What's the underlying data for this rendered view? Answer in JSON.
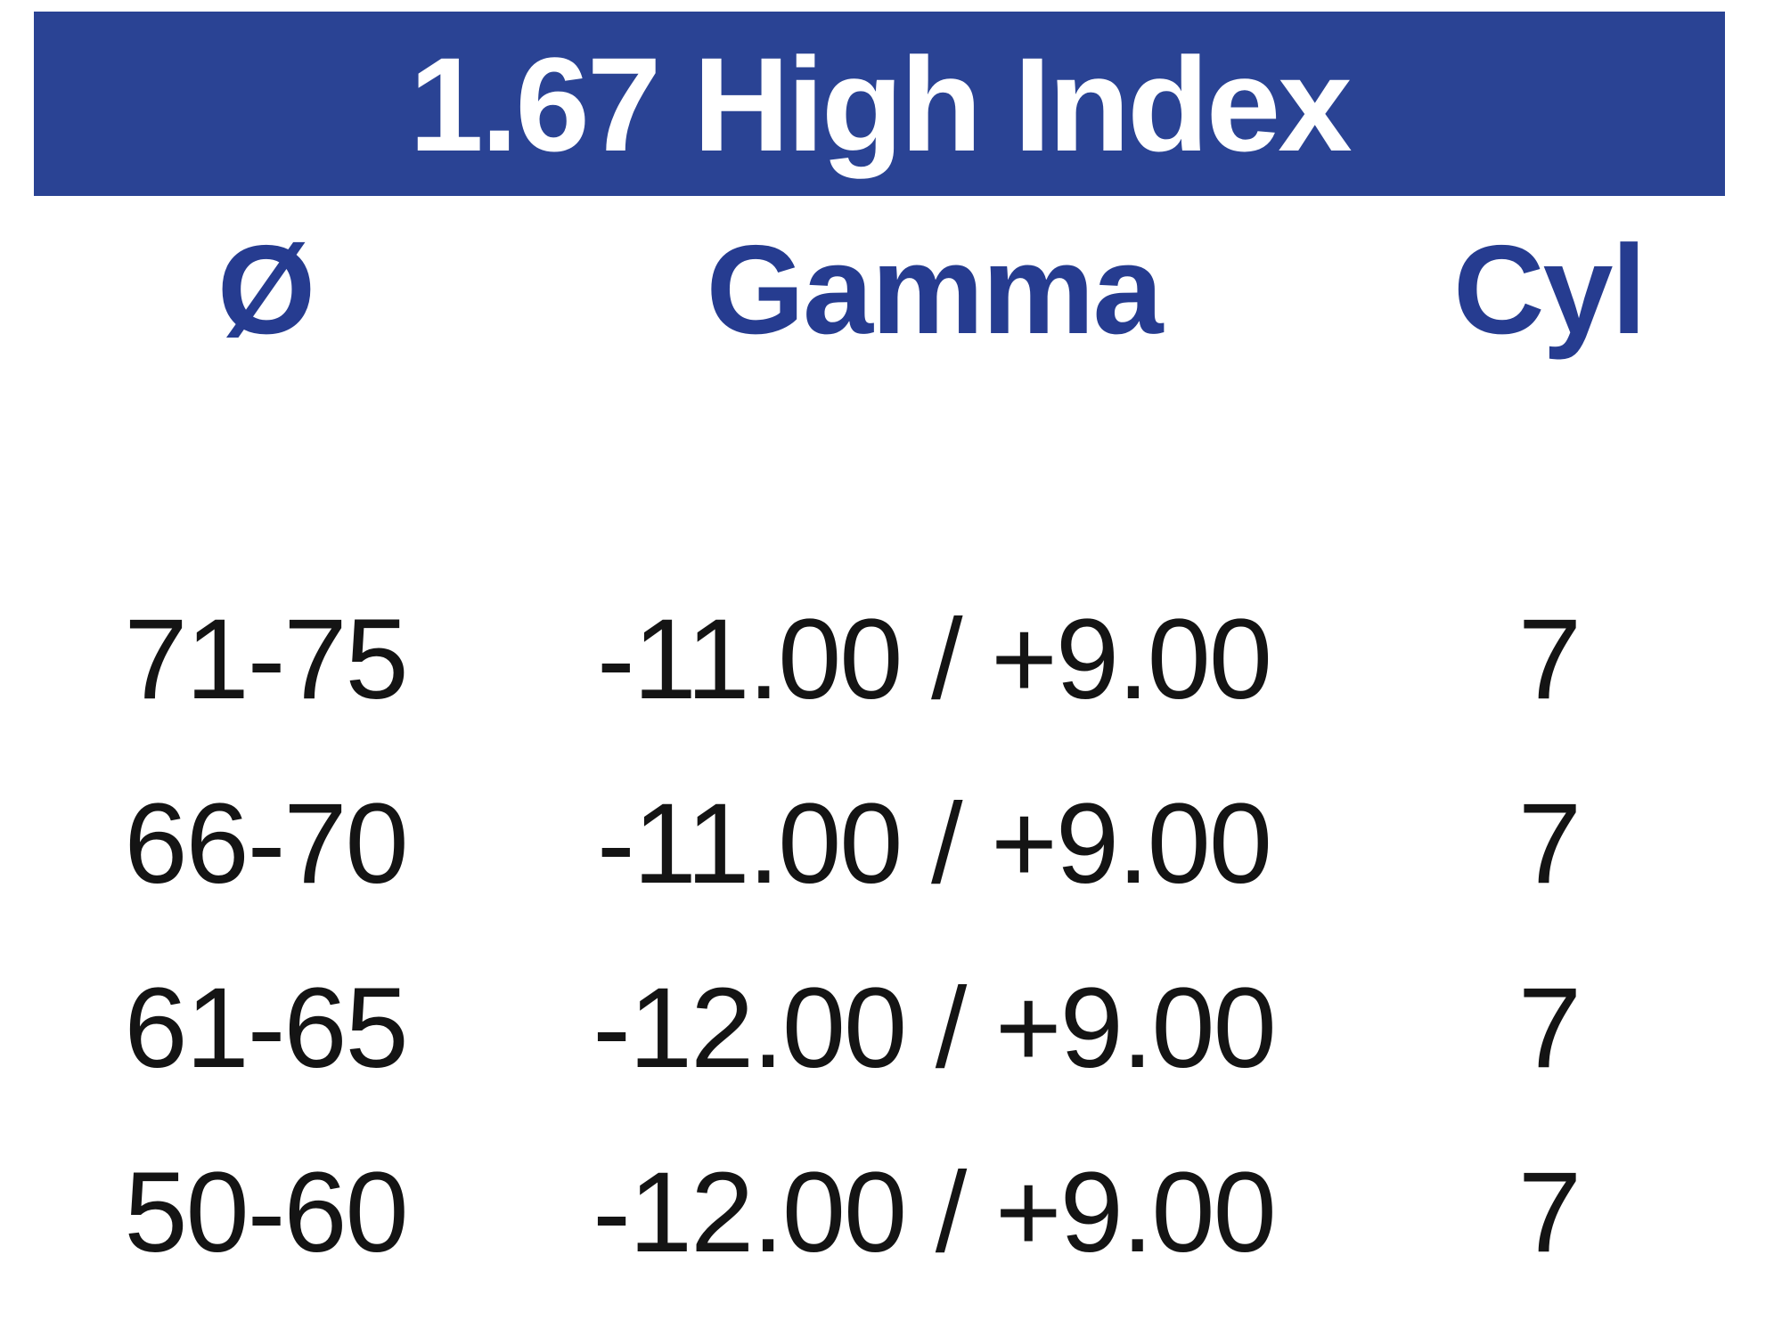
{
  "banner": {
    "title": "1.67 High Index"
  },
  "columns": [
    {
      "label": "Ø"
    },
    {
      "label": "Gamma"
    },
    {
      "label": "Cyl"
    }
  ],
  "rows": [
    {
      "diameter": "71-75",
      "gamma": "-11.00 / +9.00",
      "cyl": "7",
      "shaded": false
    },
    {
      "diameter": "66-70",
      "gamma": "-11.00 / +9.00",
      "cyl": "7",
      "shaded": true
    },
    {
      "diameter": "61-65",
      "gamma": "-12.00 / +9.00",
      "cyl": "7",
      "shaded": false
    },
    {
      "diameter": "50-60",
      "gamma": "-12.00 / +9.00",
      "cyl": "7",
      "shaded": true
    }
  ],
  "colors": {
    "banner_blue": "#2a4394",
    "banner_text": "#ffffff",
    "header_text_blue": "#263c90",
    "shaded_cell_gray": "#e6e6e8",
    "data_text": "#141414"
  }
}
